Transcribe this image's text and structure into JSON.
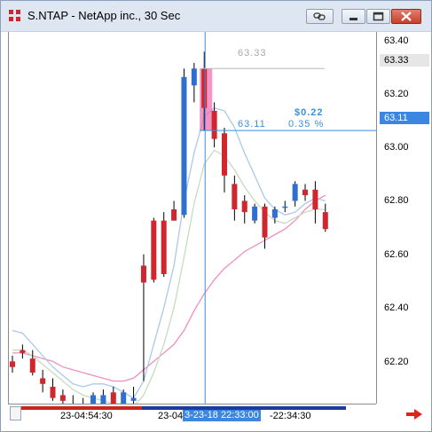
{
  "window": {
    "title": "S.NTAP - NetApp inc., 30 Sec",
    "buttons": [
      "link-icon",
      "minimize-icon",
      "maximize-icon",
      "close-icon"
    ]
  },
  "price_axis": {
    "ticks": [
      "63.40",
      "63.20",
      "63.00",
      "62.80",
      "62.60",
      "62.40",
      "62.20"
    ],
    "last_price": "63.33",
    "cursor_price": "63.11"
  },
  "measure": {
    "top_price": "63.33",
    "bottom_price": "63.11",
    "delta": "$0.22",
    "percent": "0.35 %"
  },
  "time_axis": {
    "labels": [
      "23-04:54:30",
      "23-04",
      "-22:34:30"
    ],
    "cursor_label": "3-23-18 22:33:00"
  },
  "colors": {
    "up_candle": "#2f6fd0",
    "down_candle": "#d0262d",
    "ma_fast": "#aac9ea",
    "ma_mid": "#c5dcc1",
    "ma_slow": "#ef8fbf",
    "crosshair": "#3a8fe0",
    "selection": "#f06fb3"
  },
  "chart_data": {
    "type": "candlestick",
    "symbol": "S.NTAP",
    "ylim": [
      62.14,
      63.46
    ],
    "candles": [
      {
        "o": 62.29,
        "h": 62.31,
        "l": 62.25,
        "c": 62.27
      },
      {
        "o": 62.33,
        "h": 62.35,
        "l": 62.3,
        "c": 62.32
      },
      {
        "o": 62.3,
        "h": 62.33,
        "l": 62.24,
        "c": 62.25
      },
      {
        "o": 62.23,
        "h": 62.26,
        "l": 62.18,
        "c": 62.21
      },
      {
        "o": 62.2,
        "h": 62.23,
        "l": 62.15,
        "c": 62.16
      },
      {
        "o": 62.17,
        "h": 62.19,
        "l": 62.13,
        "c": 62.15
      },
      {
        "o": 62.14,
        "h": 62.17,
        "l": 62.1,
        "c": 62.12
      },
      {
        "o": 62.13,
        "h": 62.16,
        "l": 62.09,
        "c": 62.11
      },
      {
        "o": 62.1,
        "h": 62.18,
        "l": 62.1,
        "c": 62.17
      },
      {
        "o": 62.12,
        "h": 62.19,
        "l": 62.09,
        "c": 62.17
      },
      {
        "o": 62.18,
        "h": 62.2,
        "l": 62.12,
        "c": 62.13
      },
      {
        "o": 62.14,
        "h": 62.19,
        "l": 62.13,
        "c": 62.18
      },
      {
        "o": 62.15,
        "h": 62.2,
        "l": 62.12,
        "c": 62.16
      },
      {
        "o": 62.63,
        "h": 62.67,
        "l": 62.22,
        "c": 62.57
      },
      {
        "o": 62.79,
        "h": 62.8,
        "l": 62.57,
        "c": 62.58
      },
      {
        "o": 62.79,
        "h": 62.82,
        "l": 62.59,
        "c": 62.6
      },
      {
        "o": 62.83,
        "h": 62.86,
        "l": 62.79,
        "c": 62.79
      },
      {
        "o": 62.81,
        "h": 63.33,
        "l": 62.8,
        "c": 63.3
      },
      {
        "o": 63.27,
        "h": 63.35,
        "l": 63.21,
        "c": 63.33
      },
      {
        "o": 63.33,
        "h": 63.39,
        "l": 63.11,
        "c": 63.19
      },
      {
        "o": 63.18,
        "h": 63.21,
        "l": 63.05,
        "c": 63.08
      },
      {
        "o": 63.1,
        "h": 63.12,
        "l": 62.89,
        "c": 62.95
      },
      {
        "o": 62.92,
        "h": 62.95,
        "l": 62.79,
        "c": 62.83
      },
      {
        "o": 62.86,
        "h": 62.88,
        "l": 62.78,
        "c": 62.82
      },
      {
        "o": 62.79,
        "h": 62.85,
        "l": 62.78,
        "c": 62.84
      },
      {
        "o": 62.84,
        "h": 62.85,
        "l": 62.69,
        "c": 62.73
      },
      {
        "o": 62.8,
        "h": 62.84,
        "l": 62.78,
        "c": 62.83
      },
      {
        "o": 62.84,
        "h": 62.86,
        "l": 62.82,
        "c": 62.84
      },
      {
        "o": 62.86,
        "h": 62.93,
        "l": 62.84,
        "c": 62.92
      },
      {
        "o": 62.9,
        "h": 62.92,
        "l": 62.86,
        "c": 62.88
      },
      {
        "o": 62.9,
        "h": 62.93,
        "l": 62.78,
        "c": 62.83
      },
      {
        "o": 62.82,
        "h": 62.85,
        "l": 62.75,
        "c": 62.76
      }
    ],
    "ma_fast": [
      62.4,
      62.39,
      62.35,
      62.31,
      62.27,
      62.24,
      62.21,
      62.2,
      62.21,
      62.21,
      62.2,
      62.18,
      62.16,
      62.22,
      62.35,
      62.48,
      62.63,
      62.86,
      63.03,
      63.16,
      63.19,
      63.18,
      63.12,
      63.03,
      62.95,
      62.87,
      62.83,
      62.81,
      62.82,
      62.85,
      62.87,
      62.86
    ],
    "ma_mid": [
      62.33,
      62.33,
      62.31,
      62.28,
      62.25,
      62.22,
      62.19,
      62.17,
      62.16,
      62.15,
      62.14,
      62.14,
      62.13,
      62.17,
      62.25,
      62.35,
      62.48,
      62.66,
      62.85,
      62.99,
      63.04,
      63.02,
      62.97,
      62.91,
      62.86,
      62.82,
      62.79,
      62.78,
      62.8,
      62.82,
      62.83,
      62.83
    ],
    "ma_slow": [
      62.32,
      62.32,
      62.31,
      62.3,
      62.29,
      62.27,
      62.26,
      62.25,
      62.24,
      62.23,
      62.22,
      62.22,
      62.23,
      62.26,
      62.29,
      62.32,
      62.35,
      62.4,
      62.47,
      62.53,
      62.58,
      62.62,
      62.65,
      62.68,
      62.7,
      62.72,
      62.74,
      62.76,
      62.79,
      62.83,
      62.86,
      62.88
    ],
    "selected_index": 19
  }
}
